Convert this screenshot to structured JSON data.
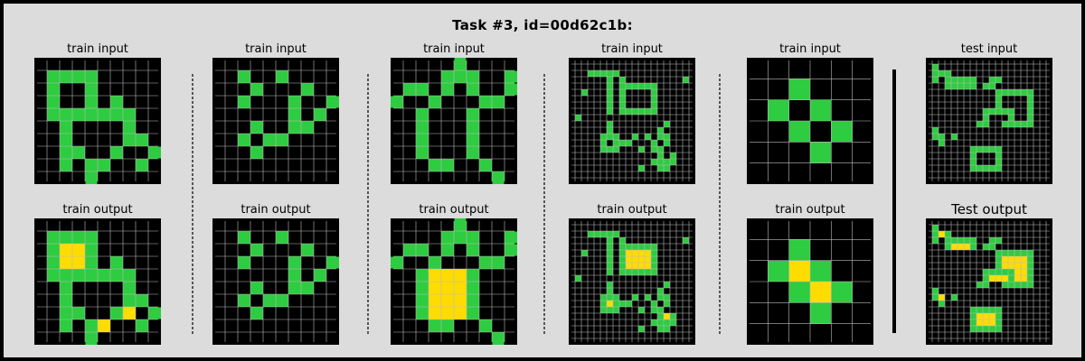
{
  "title": "Task #3, id=00d62c1b:",
  "colors": {
    "background": "#000000",
    "green": "#2ecc40",
    "yellow": "#ffdc00",
    "gridline": "#bbbbbb",
    "frame": "#dcdcdc"
  },
  "pairs": [
    {
      "input_label": "train input",
      "output_label": "train output",
      "input": [
        "0000000000",
        "0333300000",
        "0300300000",
        "0300303000",
        "0333333300",
        "0030000300",
        "0030000330",
        "0033003003",
        "0030330030",
        "0000300000"
      ],
      "output": [
        "0000000000",
        "0333300000",
        "0344300000",
        "0344303000",
        "0333333300",
        "0030000300",
        "0030000330",
        "0033003403",
        "0030340030",
        "0000300000"
      ]
    },
    {
      "input_label": "train input",
      "output_label": "train output",
      "input": [
        "0000000000",
        "0030030000",
        "0003000300",
        "0030003003",
        "0000003030",
        "0003003300",
        "0030330000",
        "0003000000",
        "0000000000",
        "0000000000"
      ],
      "output": [
        "0000000000",
        "0030030000",
        "0003000300",
        "0030003003",
        "0000003030",
        "0003003300",
        "0030330000",
        "0003000000",
        "0000000000",
        "0000000000"
      ]
    },
    {
      "input_label": "train input",
      "output_label": "train output",
      "input": [
        "0000030000",
        "0000333003",
        "0330303003",
        "3003000330",
        "0030003000",
        "0030003000",
        "0030003000",
        "0030003000",
        "0003300300",
        "0000000030"
      ],
      "output": [
        "0000030000",
        "0000333003",
        "0330303003",
        "3003000330",
        "0034443000",
        "0034443000",
        "0034443000",
        "0034443000",
        "0003300300",
        "0000000030"
      ]
    },
    {
      "input_label": "train input",
      "output_label": "train output",
      "input": [
        "00000000000000000000",
        "00000000000000000000",
        "00033333000000000000",
        "00000030300000000030",
        "00000030333333000000",
        "00300030300003000000",
        "00000030300003000000",
        "00000030300003000000",
        "00000030333333000000",
        "03000000000000000000",
        "00000030000000030000",
        "00000030000000300000",
        "00000333003030330000",
        "00000303330003030000",
        "00000333000303300000",
        "00000000000000303000",
        "00000000000003333000",
        "00000000000300330000",
        "00000000000000000000",
        "00000000000000000000"
      ],
      "output": [
        "00000000000000000000",
        "00000000000000000000",
        "00033333000000000000",
        "00000030300000000030",
        "00000030333333000000",
        "00300030344443000000",
        "00000030344443000000",
        "00000030344443000000",
        "00000030333333000000",
        "03000000000000000000",
        "00000030000000030000",
        "00000030000000300000",
        "00000333003030330000",
        "00000343330003030000",
        "00000333000303300000",
        "00000000000000343000",
        "00000000000003333000",
        "00000000000300330000",
        "00000000000000000000",
        "00000000000000000000"
      ]
    },
    {
      "input_label": "train input",
      "output_label": "train output",
      "input": [
        "000000",
        "003000",
        "030300",
        "003030",
        "000300",
        "000000"
      ],
      "output": [
        "000000",
        "003000",
        "034300",
        "003430",
        "000300",
        "000000"
      ]
    },
    {
      "input_label": "test input",
      "output_label": "Test output",
      "input": [
        "00000000000000000000",
        "03000000000000000000",
        "03330000000000000000",
        "03033333003300000000",
        "00033333033000000000",
        "00000000000333333000",
        "00000000000300003000",
        "00000000000300003000",
        "00000000033333003000",
        "00000000030003003000",
        "00000000330033333000",
        "03000000000000000000",
        "03303000000000000000",
        "00300000000000000000",
        "00000003333300000000",
        "00000003000300000000",
        "00000003000300000000",
        "00000003333300000000",
        "00000000000000000000",
        "00000000000000000000"
      ],
      "output": [
        "00000000000000000000",
        "03000000000000000000",
        "03430000000000000000",
        "03033333003300000000",
        "00034443033000000000",
        "00000000000333333000",
        "00000000000344443000",
        "00000000000344443000",
        "00000000033333443000",
        "00000000034443443000",
        "00000000330033333000",
        "03000000000000000000",
        "03403000000000000000",
        "00300000000000000000",
        "00000003333300000000",
        "00000003444300000000",
        "00000003444300000000",
        "00000003333300000000",
        "00000000000000000000",
        "00000000000000000000"
      ]
    }
  ]
}
